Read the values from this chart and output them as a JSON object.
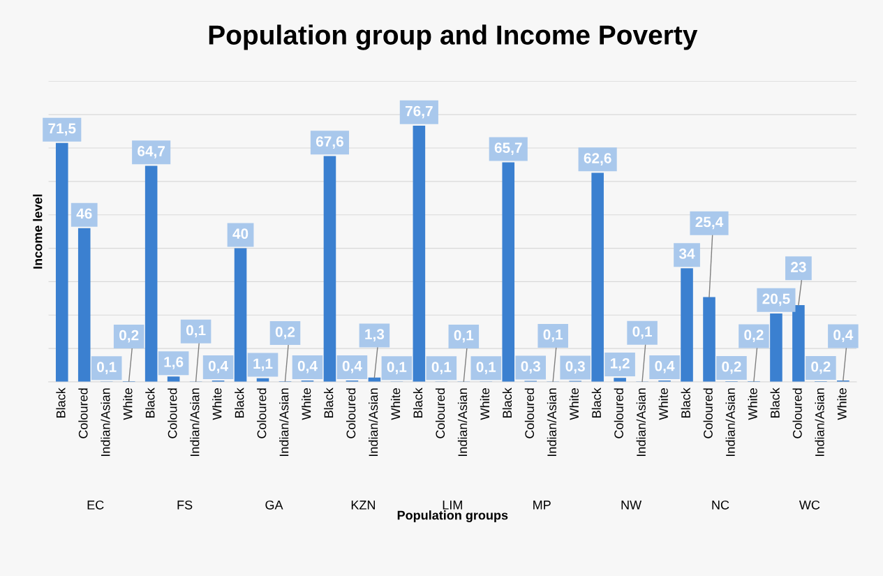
{
  "chart_data": {
    "type": "bar",
    "title": "Population group and Income Poverty",
    "xlabel": "Population groups",
    "ylabel": "Income level",
    "categories": [
      "Black",
      "Coloured",
      "Indian/Asian",
      "White",
      "Black",
      "Coloured",
      "Indian/Asian",
      "White",
      "Black",
      "Coloured",
      "Indian/Asian",
      "White",
      "Black",
      "Coloured",
      "Indian/Asian",
      "White",
      "Black",
      "Coloured",
      "Indian/Asian",
      "White",
      "Black",
      "Coloured",
      "Indian/Asian",
      "White",
      "Black",
      "Coloured",
      "Indian/Asian",
      "White",
      "Black",
      "Coloured",
      "Indian/Asian",
      "White",
      "Black",
      "Coloured",
      "Indian/Asian",
      "White"
    ],
    "values": [
      71.5,
      46,
      0.1,
      0.2,
      64.7,
      1.6,
      0.1,
      0.4,
      40,
      1.1,
      0.2,
      0.4,
      67.6,
      0.4,
      1.3,
      0.1,
      76.7,
      0.1,
      0.1,
      0.1,
      65.7,
      0.3,
      0.1,
      0.3,
      62.6,
      1.2,
      0.1,
      0.4,
      34,
      25.4,
      0.2,
      0.2,
      20.5,
      23,
      0.2,
      0.4
    ],
    "value_labels": [
      "71,5",
      "46",
      "0,1",
      "0,2",
      "64,7",
      "1,6",
      "0,1",
      "0,4",
      "40",
      "1,1",
      "0,2",
      "0,4",
      "67,6",
      "0,4",
      "1,3",
      "0,1",
      "76,7",
      "0,1",
      "0,1",
      "0,1",
      "65,7",
      "0,3",
      "0,1",
      "0,3",
      "62,6",
      "1,2",
      "0,1",
      "0,4",
      "34",
      "25,4",
      "0,2",
      "0,2",
      "20,5",
      "23",
      "0,2",
      "0,4"
    ],
    "color": "#3b80d0",
    "annotations": [
      "EC",
      "FS",
      "GA",
      "KZN",
      "LIM",
      "MP",
      "NW",
      "NC",
      "WC"
    ],
    "ylim": [
      0,
      90
    ],
    "yticks": [
      {
        "value": 0,
        "label": null
      },
      {
        "value": 10,
        "label": null
      },
      {
        "value": 20,
        "label": null
      },
      {
        "value": 30,
        "label": null
      },
      {
        "value": 40,
        "label": null
      },
      {
        "value": 50,
        "label": null
      },
      {
        "value": 60,
        "label": null
      },
      {
        "value": 70,
        "label": null
      },
      {
        "value": 80,
        "label": null
      },
      {
        "value": 90,
        "label": null
      }
    ],
    "grid": "y",
    "tick_labels": "x"
  }
}
